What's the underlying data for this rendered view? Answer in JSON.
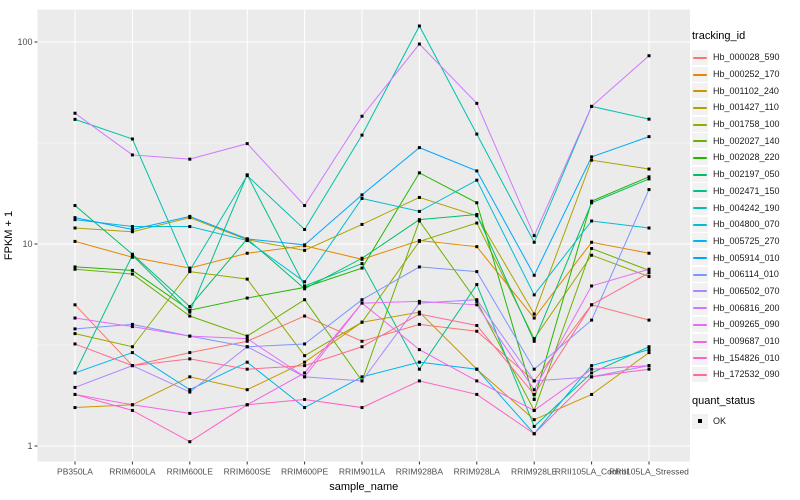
{
  "chart": {
    "y_axis_title": "FPKM + 1",
    "x_axis_title": "sample_name",
    "legend_title": "tracking_id",
    "quant_legend_title": "quant_status",
    "quant_legend_items": [
      "OK"
    ]
  },
  "colors": {
    "background": "#FFFFFF",
    "panel": "#EBEBEB",
    "grid": "#FFFFFF",
    "tick_text": "#4D4D4D",
    "axis_title_text": "#000000",
    "legend_key": "#F2F2F2",
    "point": "#000000"
  },
  "chart_data": {
    "type": "line",
    "scale": "log10",
    "xlabel": "sample_name",
    "ylabel": "FPKM + 1",
    "yticks": [
      1,
      10,
      100
    ],
    "ytick_labels": [
      "1",
      "10",
      "100"
    ],
    "minor_ticks": [
      3.162,
      31.62
    ],
    "ylim": [
      1,
      145
    ],
    "grid": true,
    "legend_position": "right",
    "point_marker": "black-square",
    "quant_status": "OK",
    "categories": [
      "PB350LA",
      "RRIM600LA",
      "RRIM600LE",
      "RRIM600SE",
      "RRIM600PE",
      "RRIM901LA",
      "RRIM928BA",
      "RRIM928LA",
      "RRIM928LE",
      "RRII105LA_Control",
      "RRII105LA_Stressed"
    ],
    "series": [
      {
        "name": "Hb_000028_590",
        "color": "#F8766D",
        "values": [
          5.0,
          2.5,
          2.9,
          3.3,
          4.4,
          3.3,
          4.0,
          3.7,
          2.1,
          5.0,
          4.2
        ]
      },
      {
        "name": "Hb_000252_170",
        "color": "#E58700",
        "values": [
          10.3,
          8.6,
          7.6,
          9.0,
          9.8,
          8.4,
          10.4,
          9.7,
          4.3,
          10.2,
          9.0
        ]
      },
      {
        "name": "Hb_001102_240",
        "color": "#C99800",
        "values": [
          1.55,
          1.6,
          2.2,
          1.9,
          2.6,
          4.1,
          4.6,
          2.4,
          1.35,
          1.8,
          2.9
        ]
      },
      {
        "name": "Hb_001427_110",
        "color": "#AEA200",
        "values": [
          12.0,
          11.5,
          13.5,
          10.5,
          9.3,
          12.5,
          17.0,
          13.8,
          4.5,
          26.0,
          23.5
        ]
      },
      {
        "name": "Hb_001758_100",
        "color": "#95A900",
        "values": [
          3.6,
          3.1,
          7.3,
          6.7,
          2.8,
          4.1,
          10.3,
          12.7,
          3.4,
          8.8,
          6.9
        ]
      },
      {
        "name": "Hb_002027_140",
        "color": "#6BB100",
        "values": [
          7.5,
          7.1,
          4.4,
          3.5,
          5.3,
          2.1,
          13.0,
          5.2,
          1.5,
          9.5,
          7.4
        ]
      },
      {
        "name": "Hb_002028_220",
        "color": "#24B700",
        "values": [
          7.7,
          7.4,
          4.7,
          5.4,
          6.1,
          7.6,
          22.5,
          16.0,
          1.7,
          16.3,
          21.5
        ]
      },
      {
        "name": "Hb_002197_050",
        "color": "#00BE67",
        "values": [
          15.5,
          8.9,
          4.9,
          10.6,
          6.0,
          8.5,
          13.2,
          14.0,
          3.3,
          16.0,
          21.0
        ]
      },
      {
        "name": "Hb_002471_150",
        "color": "#00C08B",
        "values": [
          2.3,
          8.8,
          4.6,
          22.0,
          6.2,
          8.0,
          2.4,
          6.3,
          1.25,
          2.3,
          3.1
        ]
      },
      {
        "name": "Hb_004242_190",
        "color": "#00C1AB",
        "values": [
          41.4,
          33.1,
          7.4,
          21.8,
          11.8,
          34.6,
          120.0,
          35.0,
          10.2,
          48.0,
          41.5
        ]
      },
      {
        "name": "Hb_004800_070",
        "color": "#00BDD2",
        "values": [
          13.2,
          12.2,
          12.2,
          10.4,
          6.5,
          16.8,
          14.5,
          20.7,
          5.6,
          13.0,
          12.0
        ]
      },
      {
        "name": "Hb_005725_270",
        "color": "#00B4F0",
        "values": [
          2.3,
          2.9,
          1.9,
          2.6,
          1.55,
          2.2,
          2.6,
          2.4,
          1.15,
          2.5,
          3.0
        ]
      },
      {
        "name": "Hb_005914_010",
        "color": "#00A6FF",
        "values": [
          13.5,
          11.8,
          13.7,
          10.6,
          9.9,
          17.5,
          30.0,
          23.0,
          7.0,
          27.0,
          34.0
        ]
      },
      {
        "name": "Hb_006114_010",
        "color": "#7C96FF",
        "values": [
          3.8,
          4.0,
          3.5,
          3.1,
          3.2,
          5.3,
          7.7,
          7.3,
          2.4,
          4.2,
          18.6
        ]
      },
      {
        "name": "Hb_006502_070",
        "color": "#AC88FF",
        "values": [
          1.95,
          2.5,
          1.85,
          3.1,
          2.2,
          2.1,
          5.1,
          5.3,
          2.1,
          2.2,
          2.5
        ]
      },
      {
        "name": "Hb_006816_200",
        "color": "#CF78FF",
        "values": [
          44.4,
          27.6,
          26.3,
          31.4,
          15.5,
          42.9,
          97.7,
          49.7,
          11.0,
          48.0,
          85.5
        ]
      },
      {
        "name": "Hb_009265_090",
        "color": "#E56DF5",
        "values": [
          4.3,
          3.9,
          3.5,
          3.4,
          2.2,
          5.1,
          5.2,
          5.0,
          1.9,
          6.2,
          7.5
        ]
      },
      {
        "name": "Hb_009687_010",
        "color": "#F166E8",
        "values": [
          1.8,
          1.6,
          1.45,
          1.6,
          2.3,
          5.1,
          3.0,
          2.1,
          1.5,
          2.4,
          2.5
        ]
      },
      {
        "name": "Hb_154826_010",
        "color": "#FF61C7",
        "values": [
          1.8,
          1.5,
          1.05,
          1.6,
          1.7,
          1.55,
          2.1,
          1.8,
          1.15,
          2.2,
          2.4
        ]
      },
      {
        "name": "Hb_172532_090",
        "color": "#FF6C91",
        "values": [
          3.2,
          2.5,
          2.7,
          2.4,
          2.5,
          3.1,
          4.5,
          3.95,
          1.8,
          5.0,
          7.2
        ]
      }
    ]
  }
}
